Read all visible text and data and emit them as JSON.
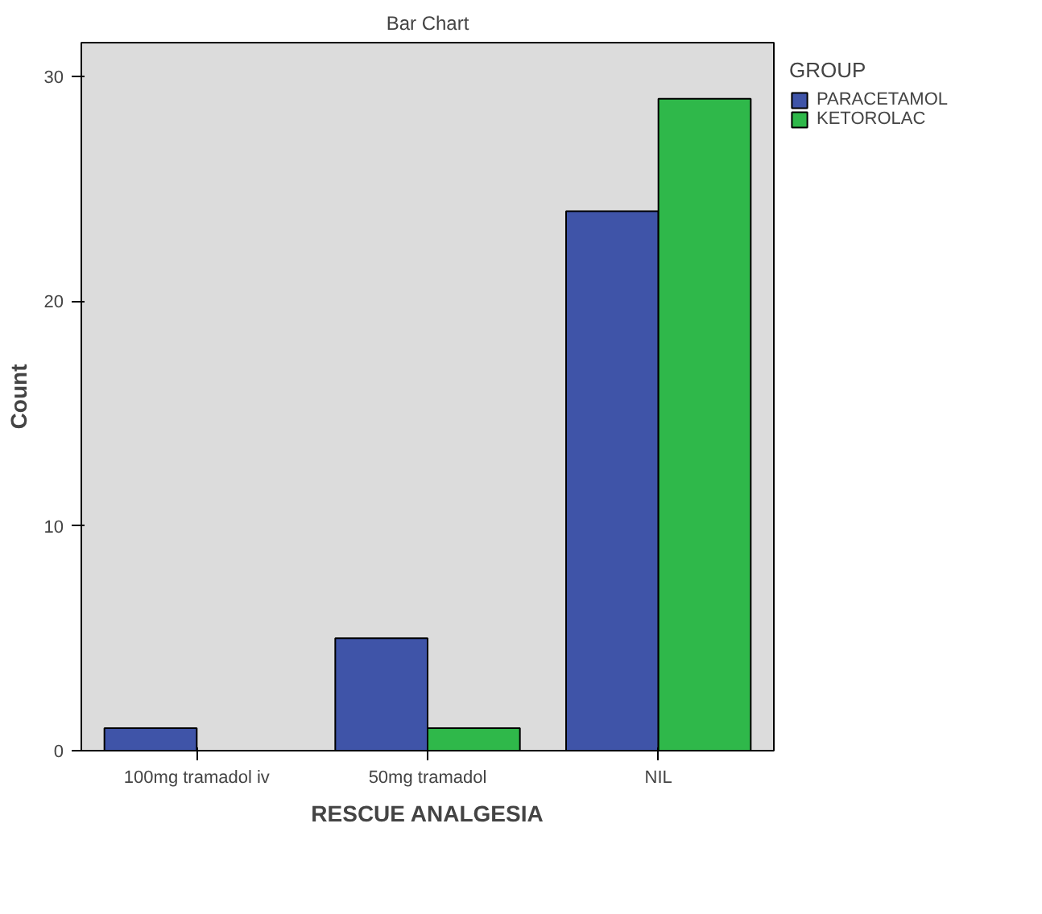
{
  "chart_data": {
    "type": "bar",
    "title": "Bar Chart",
    "xlabel": "RESCUE ANALGESIA",
    "ylabel": "Count",
    "categories": [
      "100mg tramadol iv",
      "50mg tramadol",
      "NIL"
    ],
    "series": [
      {
        "name": "PARACETAMOL",
        "color": "#3f54a8",
        "values": [
          1,
          5,
          24
        ]
      },
      {
        "name": "KETOROLAC",
        "color": "#2fb84a",
        "values": [
          null,
          1,
          29
        ]
      }
    ],
    "ylim": [
      0,
      31.5
    ],
    "yticks": [
      0,
      10,
      20,
      30
    ],
    "grid": false,
    "legend": "right",
    "legend_title": "GROUP"
  }
}
